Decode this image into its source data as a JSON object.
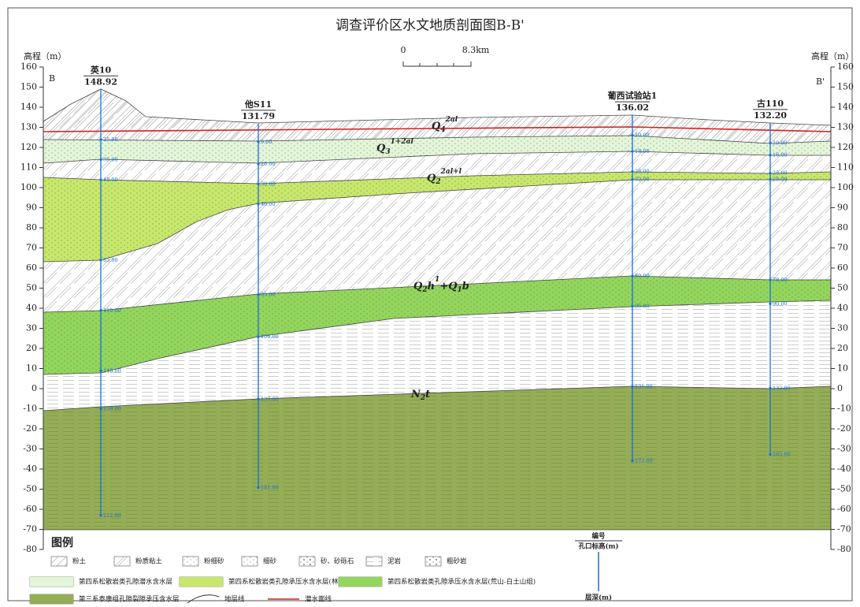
{
  "title": "调查评价区水文地质剖面图B-B'",
  "scale_bar": {
    "start": "0",
    "end": "8.3km"
  },
  "axis": {
    "label": "高程（m）",
    "ticks": [
      160,
      150,
      140,
      130,
      120,
      110,
      100,
      90,
      80,
      70,
      60,
      50,
      40,
      30,
      20,
      10,
      0,
      -10,
      -20,
      -30,
      -40,
      -50,
      -60,
      -70,
      -80
    ]
  },
  "section_ends": {
    "left": "B",
    "right": "B'"
  },
  "boreholes": [
    {
      "name": "英10",
      "elevation": 148.92,
      "depths": [
        {
          "value": 25,
          "label": "25.00"
        },
        {
          "value": 35,
          "label": "35.00"
        },
        {
          "value": 45,
          "label": "45.00"
        },
        {
          "value": 85,
          "label": "85.00"
        },
        {
          "value": 110,
          "label": "110.00"
        },
        {
          "value": 140,
          "label": "140.00"
        },
        {
          "value": 159,
          "label": "159.00"
        },
        {
          "value": 212,
          "label": "212.00"
        }
      ]
    },
    {
      "name": "他S11",
      "elevation": 131.79,
      "depths": [
        {
          "value": 9,
          "label": "9.00"
        },
        {
          "value": 20,
          "label": "20.00"
        },
        {
          "value": 30,
          "label": "30.00"
        },
        {
          "value": 40,
          "label": "40.00"
        },
        {
          "value": 85,
          "label": "85.00"
        },
        {
          "value": 106,
          "label": "106.00"
        },
        {
          "value": 137,
          "label": "137.00"
        },
        {
          "value": 181,
          "label": "181.00"
        }
      ]
    },
    {
      "name": "葡西试验站1",
      "elevation": 136.02,
      "depths": [
        {
          "value": 10,
          "label": "10.00"
        },
        {
          "value": 18,
          "label": "18.00"
        },
        {
          "value": 28,
          "label": "28.00"
        },
        {
          "value": 32,
          "label": "32.00"
        },
        {
          "value": 80,
          "label": "80.00"
        },
        {
          "value": 95,
          "label": "95.00"
        },
        {
          "value": 135,
          "label": "135.00"
        },
        {
          "value": 172,
          "label": "172.00"
        }
      ]
    },
    {
      "name": "古110",
      "elevation": {
        "value": 132.2,
        "label": "132.20"
      },
      "depths": [
        {
          "value": 10,
          "label": "10.00"
        },
        {
          "value": 16,
          "label": "16.00"
        },
        {
          "value": 25,
          "label": "25.00"
        },
        {
          "value": 28,
          "label": "28.00"
        },
        {
          "value": 78,
          "label": "78.00"
        },
        {
          "value": 90,
          "label": "90.00"
        },
        {
          "value": 132,
          "label": "132.00"
        },
        {
          "value": 165,
          "label": "165.00"
        }
      ]
    }
  ],
  "layer_labels": [
    {
      "parts": [
        {
          "text": "Q"
        },
        {
          "text": "4",
          "pos": "sub"
        },
        {
          "text": "2al",
          "pos": "sup"
        }
      ]
    },
    {
      "parts": [
        {
          "text": "Q"
        },
        {
          "text": "3",
          "pos": "sub"
        },
        {
          "text": "1+2al",
          "pos": "sup"
        }
      ]
    },
    {
      "parts": [
        {
          "text": "Q"
        },
        {
          "text": "2",
          "pos": "sub"
        },
        {
          "text": "2al+l",
          "pos": "sup"
        }
      ]
    },
    {
      "parts": [
        {
          "text": "Q"
        },
        {
          "text": "2",
          "pos": "sub"
        },
        {
          "text": "h"
        },
        {
          "text": "1",
          "pos": "sup"
        },
        {
          "text": "+Q"
        },
        {
          "text": "1",
          "pos": "sub"
        },
        {
          "text": "b"
        }
      ]
    },
    {
      "parts": [
        {
          "text": "N"
        },
        {
          "text": "2",
          "pos": "sub"
        },
        {
          "text": "t"
        }
      ]
    }
  ],
  "legend": {
    "title": "图例",
    "items": [
      "粉土",
      "粉质粘土",
      "粉细砂",
      "细砂",
      "砂、砂砾石",
      "泥岩",
      "粗砂岩",
      "第四系松散岩类孔隙潜水含水层",
      "第四系松散岩类孔隙承压水含水层(林甸组)",
      "第四系松散岩类孔隙承压水含水层(荒山-白土山组)",
      "第三系泰康组孔隙裂隙承压含水层",
      "地层线",
      "潜水面线"
    ],
    "borehole_key": {
      "id": "编号",
      "elevation": "孔口标高(m)",
      "depth": "层深(m)"
    }
  }
}
